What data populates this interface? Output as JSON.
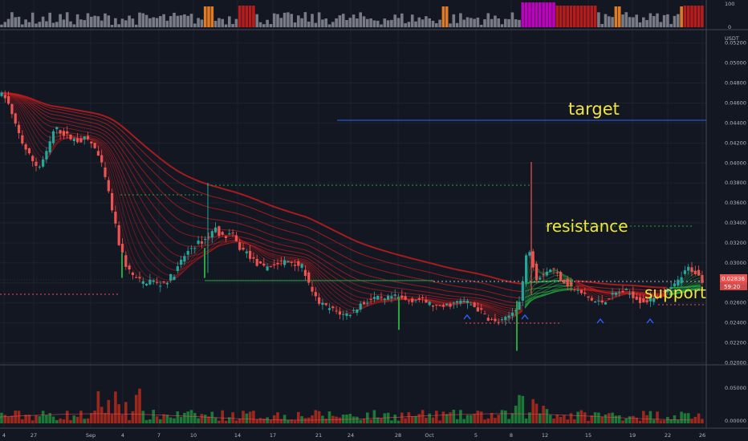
{
  "chart_data": {
    "type": "candlestick",
    "symbol_currency": "USDT",
    "top_indicator": {
      "scale_labels": [
        "100",
        "0"
      ]
    },
    "price_axis": {
      "ticks": [
        "0.05200",
        "0.05000",
        "0.04800",
        "0.04600",
        "0.04400",
        "0.04200",
        "0.04000",
        "0.03800",
        "0.03600",
        "0.03400",
        "0.03200",
        "0.03000",
        "0.02800",
        "0.02600",
        "0.02400",
        "0.02200",
        "0.02000"
      ],
      "range": [
        0.0198,
        0.0531
      ]
    },
    "current_price": {
      "value": "0.02836",
      "countdown": "59:20",
      "level": 0.02836
    },
    "volume_axis": {
      "ticks": [
        "0.05000",
        "0.00000"
      ]
    },
    "x_tick_labels": [
      "4",
      "27",
      "Sep",
      "4",
      "7",
      "10",
      "14",
      "17",
      "21",
      "24",
      "28",
      "Oct",
      "5",
      "8",
      "12",
      "15",
      "19",
      "22",
      "26"
    ],
    "annotations": [
      {
        "text": "target",
        "price": 0.0448
      },
      {
        "text": "resistance",
        "price": 0.0337
      },
      {
        "text": "support",
        "price": 0.0278
      }
    ],
    "ohlc_trace": [
      [
        0,
        0.047
      ],
      [
        10,
        0.0465
      ],
      [
        20,
        0.044
      ],
      [
        30,
        0.042
      ],
      [
        40,
        0.0405
      ],
      [
        50,
        0.0395
      ],
      [
        60,
        0.041
      ],
      [
        70,
        0.0435
      ],
      [
        80,
        0.043
      ],
      [
        90,
        0.0425
      ],
      [
        100,
        0.0422
      ],
      [
        110,
        0.0425
      ],
      [
        120,
        0.0415
      ],
      [
        130,
        0.0395
      ],
      [
        140,
        0.036
      ],
      [
        150,
        0.032
      ],
      [
        160,
        0.0295
      ],
      [
        170,
        0.0285
      ],
      [
        180,
        0.028
      ],
      [
        190,
        0.0283
      ],
      [
        200,
        0.0278
      ],
      [
        210,
        0.0282
      ],
      [
        220,
        0.029
      ],
      [
        230,
        0.0305
      ],
      [
        240,
        0.0315
      ],
      [
        250,
        0.032
      ],
      [
        260,
        0.0325
      ],
      [
        270,
        0.0335
      ],
      [
        280,
        0.0325
      ],
      [
        290,
        0.033
      ],
      [
        300,
        0.0315
      ],
      [
        310,
        0.031
      ],
      [
        320,
        0.03
      ],
      [
        330,
        0.0295
      ],
      [
        340,
        0.0298
      ],
      [
        350,
        0.03
      ],
      [
        360,
        0.0302
      ],
      [
        370,
        0.03
      ],
      [
        380,
        0.0295
      ],
      [
        390,
        0.027
      ],
      [
        400,
        0.026
      ],
      [
        410,
        0.0255
      ],
      [
        420,
        0.0252
      ],
      [
        430,
        0.0248
      ],
      [
        440,
        0.025
      ],
      [
        450,
        0.0258
      ],
      [
        460,
        0.0262
      ],
      [
        470,
        0.0265
      ],
      [
        480,
        0.0262
      ],
      [
        490,
        0.0266
      ],
      [
        500,
        0.0265
      ],
      [
        510,
        0.0262
      ],
      [
        520,
        0.0264
      ],
      [
        530,
        0.0262
      ],
      [
        540,
        0.0258
      ],
      [
        550,
        0.0255
      ],
      [
        560,
        0.0258
      ],
      [
        570,
        0.026
      ],
      [
        580,
        0.0262
      ],
      [
        590,
        0.0258
      ],
      [
        600,
        0.0252
      ],
      [
        610,
        0.0245
      ],
      [
        620,
        0.024
      ],
      [
        630,
        0.0242
      ],
      [
        640,
        0.025
      ],
      [
        650,
        0.0262
      ],
      [
        660,
        0.032
      ],
      [
        670,
        0.0285
      ],
      [
        680,
        0.029
      ],
      [
        690,
        0.0295
      ],
      [
        700,
        0.0285
      ],
      [
        710,
        0.0278
      ],
      [
        720,
        0.0272
      ],
      [
        730,
        0.0268
      ],
      [
        740,
        0.0262
      ],
      [
        750,
        0.026
      ],
      [
        760,
        0.0265
      ],
      [
        770,
        0.027
      ],
      [
        780,
        0.0272
      ],
      [
        790,
        0.0268
      ],
      [
        800,
        0.0262
      ],
      [
        810,
        0.0262
      ],
      [
        820,
        0.0268
      ],
      [
        830,
        0.027
      ],
      [
        840,
        0.0275
      ],
      [
        850,
        0.0285
      ],
      [
        860,
        0.0295
      ],
      [
        870,
        0.029
      ],
      [
        875,
        0.0283
      ]
    ]
  }
}
